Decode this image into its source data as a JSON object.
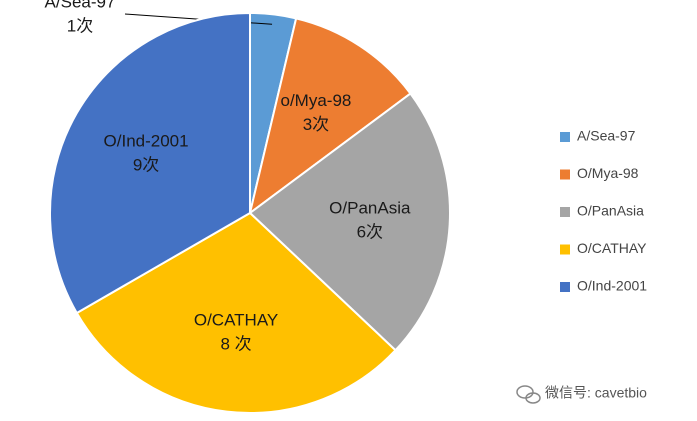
{
  "chart_data": {
    "type": "pie",
    "categories": [
      "A/Sea-97",
      "O/Mya-98",
      "O/PanAsia",
      "O/CATHAY",
      "O/Ind-2001"
    ],
    "slice_labels": [
      "A/Sea-97",
      "o/Mya-98",
      "O/PanAsia",
      "O/CATHAY",
      "O/Ind-2001"
    ],
    "values": [
      1,
      3,
      6,
      8,
      9
    ],
    "value_labels": [
      "1次",
      "3次",
      "6次",
      "8 次",
      "9次"
    ],
    "colors": [
      "#5b9bd5",
      "#ed7d31",
      "#a5a5a5",
      "#ffc000",
      "#4472c4"
    ],
    "legend": "right"
  },
  "watermark": "微信号: cavetbio"
}
